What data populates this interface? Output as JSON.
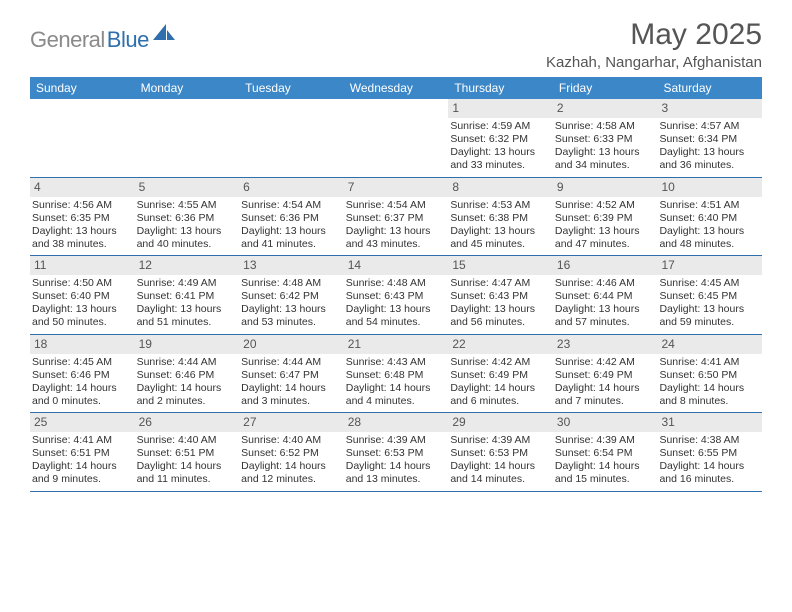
{
  "logo": {
    "gray": "General",
    "blue": "Blue"
  },
  "title": "May 2025",
  "location": "Kazhah, Nangarhar, Afghanistan",
  "colors": {
    "header_bg": "#3b87c8",
    "row_border": "#2f6fad",
    "daynum_bg": "#eaeaea",
    "text": "#333333",
    "title_text": "#555555",
    "logo_gray": "#8a8a8a",
    "logo_blue": "#2f6fad",
    "page_bg": "#ffffff"
  },
  "dow": [
    "Sunday",
    "Monday",
    "Tuesday",
    "Wednesday",
    "Thursday",
    "Friday",
    "Saturday"
  ],
  "weeks": [
    [
      null,
      null,
      null,
      null,
      {
        "n": "1",
        "sr": "Sunrise: 4:59 AM",
        "ss": "Sunset: 6:32 PM",
        "dl": "Daylight: 13 hours and 33 minutes."
      },
      {
        "n": "2",
        "sr": "Sunrise: 4:58 AM",
        "ss": "Sunset: 6:33 PM",
        "dl": "Daylight: 13 hours and 34 minutes."
      },
      {
        "n": "3",
        "sr": "Sunrise: 4:57 AM",
        "ss": "Sunset: 6:34 PM",
        "dl": "Daylight: 13 hours and 36 minutes."
      }
    ],
    [
      {
        "n": "4",
        "sr": "Sunrise: 4:56 AM",
        "ss": "Sunset: 6:35 PM",
        "dl": "Daylight: 13 hours and 38 minutes."
      },
      {
        "n": "5",
        "sr": "Sunrise: 4:55 AM",
        "ss": "Sunset: 6:36 PM",
        "dl": "Daylight: 13 hours and 40 minutes."
      },
      {
        "n": "6",
        "sr": "Sunrise: 4:54 AM",
        "ss": "Sunset: 6:36 PM",
        "dl": "Daylight: 13 hours and 41 minutes."
      },
      {
        "n": "7",
        "sr": "Sunrise: 4:54 AM",
        "ss": "Sunset: 6:37 PM",
        "dl": "Daylight: 13 hours and 43 minutes."
      },
      {
        "n": "8",
        "sr": "Sunrise: 4:53 AM",
        "ss": "Sunset: 6:38 PM",
        "dl": "Daylight: 13 hours and 45 minutes."
      },
      {
        "n": "9",
        "sr": "Sunrise: 4:52 AM",
        "ss": "Sunset: 6:39 PM",
        "dl": "Daylight: 13 hours and 47 minutes."
      },
      {
        "n": "10",
        "sr": "Sunrise: 4:51 AM",
        "ss": "Sunset: 6:40 PM",
        "dl": "Daylight: 13 hours and 48 minutes."
      }
    ],
    [
      {
        "n": "11",
        "sr": "Sunrise: 4:50 AM",
        "ss": "Sunset: 6:40 PM",
        "dl": "Daylight: 13 hours and 50 minutes."
      },
      {
        "n": "12",
        "sr": "Sunrise: 4:49 AM",
        "ss": "Sunset: 6:41 PM",
        "dl": "Daylight: 13 hours and 51 minutes."
      },
      {
        "n": "13",
        "sr": "Sunrise: 4:48 AM",
        "ss": "Sunset: 6:42 PM",
        "dl": "Daylight: 13 hours and 53 minutes."
      },
      {
        "n": "14",
        "sr": "Sunrise: 4:48 AM",
        "ss": "Sunset: 6:43 PM",
        "dl": "Daylight: 13 hours and 54 minutes."
      },
      {
        "n": "15",
        "sr": "Sunrise: 4:47 AM",
        "ss": "Sunset: 6:43 PM",
        "dl": "Daylight: 13 hours and 56 minutes."
      },
      {
        "n": "16",
        "sr": "Sunrise: 4:46 AM",
        "ss": "Sunset: 6:44 PM",
        "dl": "Daylight: 13 hours and 57 minutes."
      },
      {
        "n": "17",
        "sr": "Sunrise: 4:45 AM",
        "ss": "Sunset: 6:45 PM",
        "dl": "Daylight: 13 hours and 59 minutes."
      }
    ],
    [
      {
        "n": "18",
        "sr": "Sunrise: 4:45 AM",
        "ss": "Sunset: 6:46 PM",
        "dl": "Daylight: 14 hours and 0 minutes."
      },
      {
        "n": "19",
        "sr": "Sunrise: 4:44 AM",
        "ss": "Sunset: 6:46 PM",
        "dl": "Daylight: 14 hours and 2 minutes."
      },
      {
        "n": "20",
        "sr": "Sunrise: 4:44 AM",
        "ss": "Sunset: 6:47 PM",
        "dl": "Daylight: 14 hours and 3 minutes."
      },
      {
        "n": "21",
        "sr": "Sunrise: 4:43 AM",
        "ss": "Sunset: 6:48 PM",
        "dl": "Daylight: 14 hours and 4 minutes."
      },
      {
        "n": "22",
        "sr": "Sunrise: 4:42 AM",
        "ss": "Sunset: 6:49 PM",
        "dl": "Daylight: 14 hours and 6 minutes."
      },
      {
        "n": "23",
        "sr": "Sunrise: 4:42 AM",
        "ss": "Sunset: 6:49 PM",
        "dl": "Daylight: 14 hours and 7 minutes."
      },
      {
        "n": "24",
        "sr": "Sunrise: 4:41 AM",
        "ss": "Sunset: 6:50 PM",
        "dl": "Daylight: 14 hours and 8 minutes."
      }
    ],
    [
      {
        "n": "25",
        "sr": "Sunrise: 4:41 AM",
        "ss": "Sunset: 6:51 PM",
        "dl": "Daylight: 14 hours and 9 minutes."
      },
      {
        "n": "26",
        "sr": "Sunrise: 4:40 AM",
        "ss": "Sunset: 6:51 PM",
        "dl": "Daylight: 14 hours and 11 minutes."
      },
      {
        "n": "27",
        "sr": "Sunrise: 4:40 AM",
        "ss": "Sunset: 6:52 PM",
        "dl": "Daylight: 14 hours and 12 minutes."
      },
      {
        "n": "28",
        "sr": "Sunrise: 4:39 AM",
        "ss": "Sunset: 6:53 PM",
        "dl": "Daylight: 14 hours and 13 minutes."
      },
      {
        "n": "29",
        "sr": "Sunrise: 4:39 AM",
        "ss": "Sunset: 6:53 PM",
        "dl": "Daylight: 14 hours and 14 minutes."
      },
      {
        "n": "30",
        "sr": "Sunrise: 4:39 AM",
        "ss": "Sunset: 6:54 PM",
        "dl": "Daylight: 14 hours and 15 minutes."
      },
      {
        "n": "31",
        "sr": "Sunrise: 4:38 AM",
        "ss": "Sunset: 6:55 PM",
        "dl": "Daylight: 14 hours and 16 minutes."
      }
    ]
  ]
}
